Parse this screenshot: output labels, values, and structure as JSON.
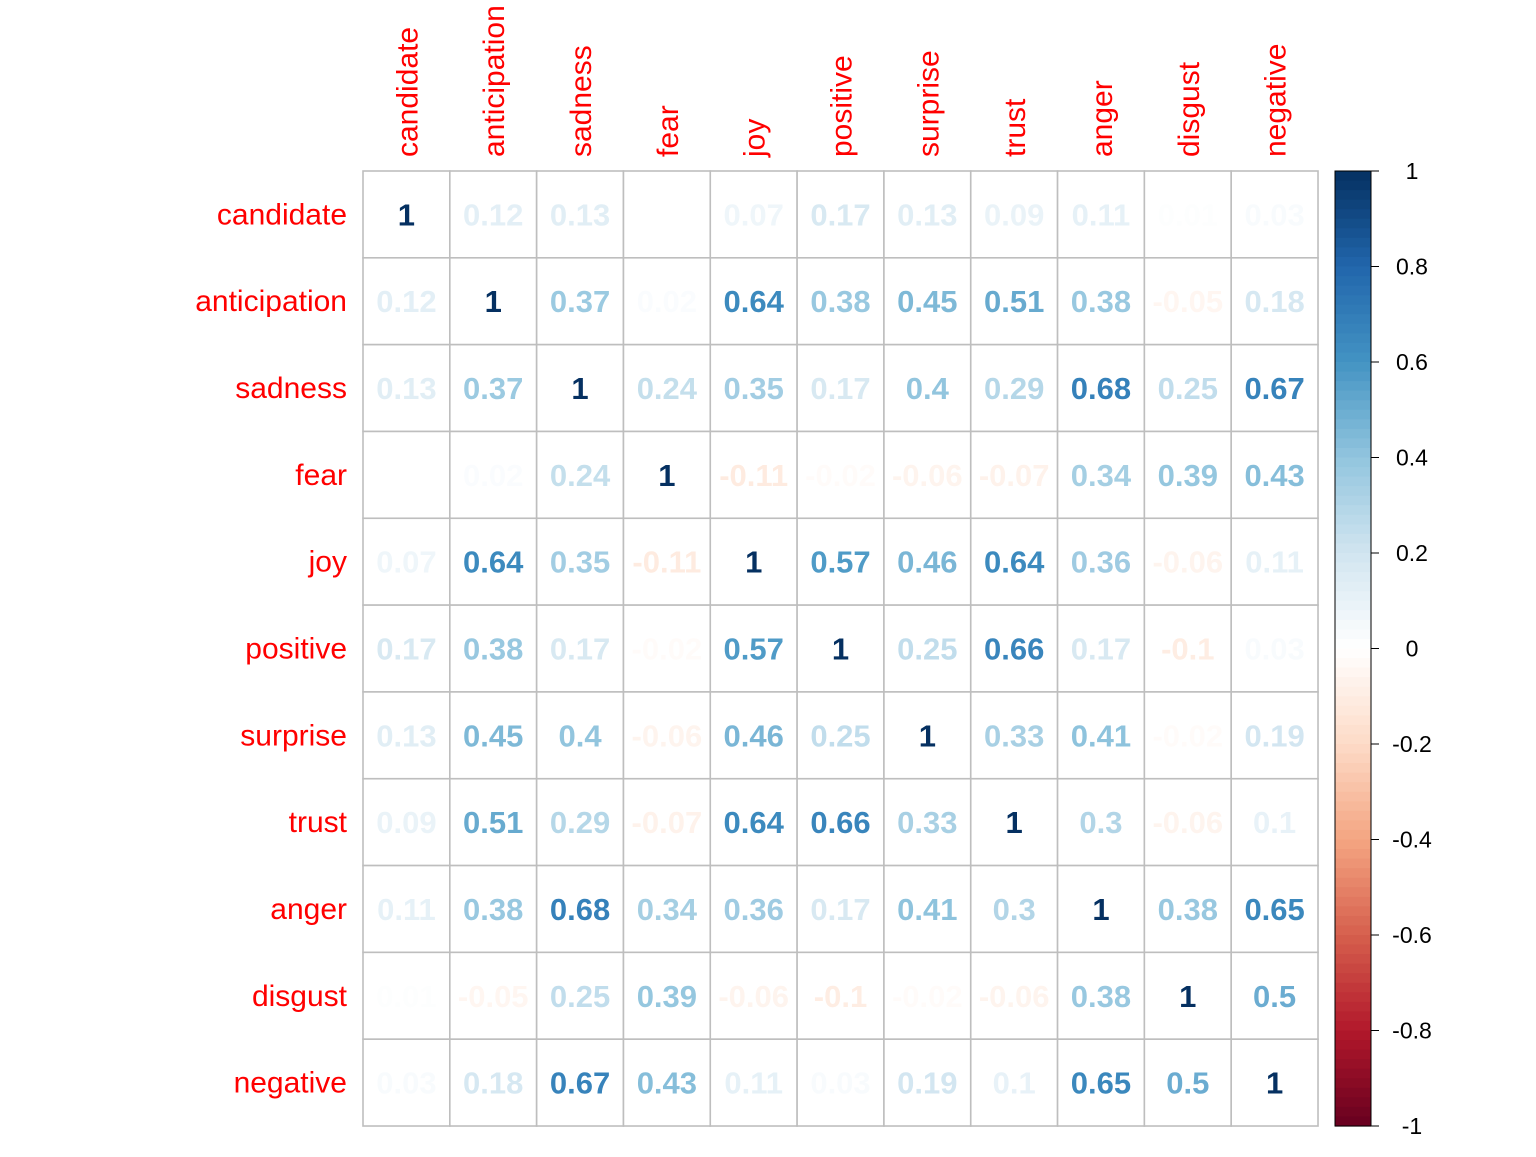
{
  "chart_data": {
    "type": "heatmap",
    "title": "",
    "variables": [
      "candidate",
      "anticipation",
      "sadness",
      "fear",
      "joy",
      "positive",
      "surprise",
      "trust",
      "anger",
      "disgust",
      "negative"
    ],
    "matrix": [
      [
        1,
        0.12,
        0.13,
        0.0,
        0.07,
        0.17,
        0.13,
        0.09,
        0.11,
        0.01,
        0.03
      ],
      [
        0.12,
        1,
        0.37,
        0.02,
        0.64,
        0.38,
        0.45,
        0.51,
        0.38,
        -0.05,
        0.18
      ],
      [
        0.13,
        0.37,
        1,
        0.24,
        0.35,
        0.17,
        0.4,
        0.29,
        0.68,
        0.25,
        0.67
      ],
      [
        0.0,
        0.02,
        0.24,
        1,
        -0.11,
        -0.02,
        -0.06,
        -0.07,
        0.34,
        0.39,
        0.43
      ],
      [
        0.07,
        0.64,
        0.35,
        -0.11,
        1,
        0.57,
        0.46,
        0.64,
        0.36,
        -0.06,
        0.11
      ],
      [
        0.17,
        0.38,
        0.17,
        -0.02,
        0.57,
        1,
        0.25,
        0.66,
        0.17,
        -0.1,
        0.03
      ],
      [
        0.13,
        0.45,
        0.4,
        -0.06,
        0.46,
        0.25,
        1,
        0.33,
        0.41,
        -0.02,
        0.19
      ],
      [
        0.09,
        0.51,
        0.29,
        -0.07,
        0.64,
        0.66,
        0.33,
        1,
        0.3,
        -0.06,
        0.1
      ],
      [
        0.11,
        0.38,
        0.68,
        0.34,
        0.36,
        0.17,
        0.41,
        0.3,
        1,
        0.38,
        0.65
      ],
      [
        0.01,
        -0.05,
        0.25,
        0.39,
        -0.06,
        -0.1,
        -0.02,
        -0.06,
        0.38,
        1,
        0.5
      ],
      [
        0.03,
        0.18,
        0.67,
        0.43,
        0.11,
        0.03,
        0.19,
        0.1,
        0.65,
        0.5,
        1
      ]
    ],
    "color_scale": {
      "range": [
        -1,
        1
      ],
      "ticks": [
        "1",
        "0.8",
        "0.6",
        "0.4",
        "0.2",
        "0",
        "-0.2",
        "-0.4",
        "-0.6",
        "-0.8",
        "-1"
      ],
      "stops": [
        "#67001F",
        "#B2182B",
        "#D6604D",
        "#F4A582",
        "#FDDBC7",
        "#FFFFFF",
        "#D1E5F0",
        "#92C5DE",
        "#4393C3",
        "#2166AC",
        "#053061"
      ]
    },
    "label_color": "#FF0000",
    "grid": true,
    "legend": "right"
  }
}
